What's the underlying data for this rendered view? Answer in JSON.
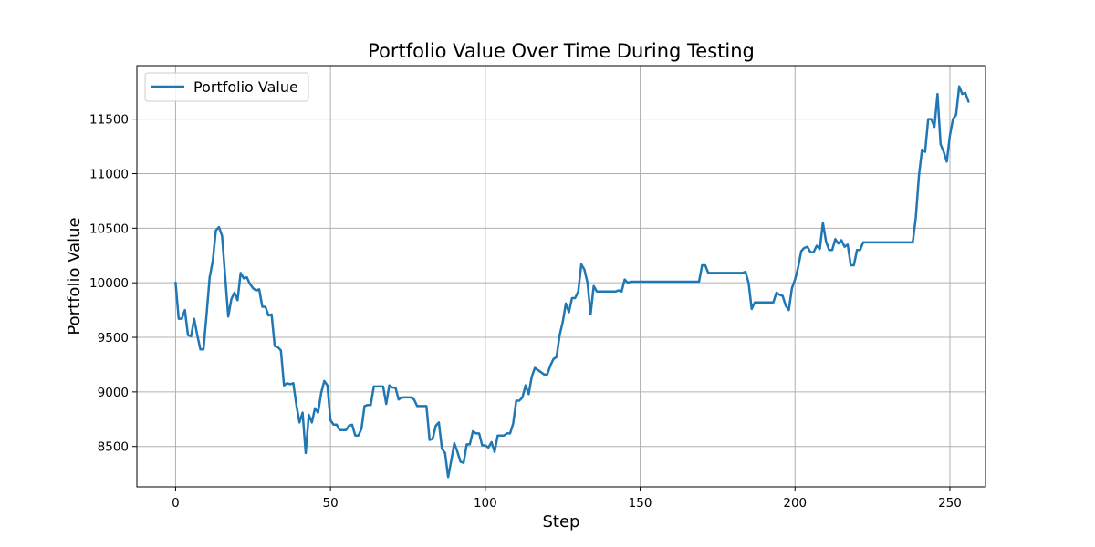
{
  "chart_data": {
    "type": "line",
    "title": "Portfolio Value Over Time During Testing",
    "xlabel": "Step",
    "ylabel": "Portfolio Value",
    "xlim": [
      -12.5,
      261.5
    ],
    "ylim": [
      8130,
      11990
    ],
    "xticks": [
      0,
      50,
      100,
      150,
      200,
      250
    ],
    "yticks": [
      8500,
      9000,
      9500,
      10000,
      10500,
      11000,
      11500
    ],
    "grid": true,
    "legend_position": "upper left",
    "series_color": "#1f77b4",
    "series": [
      {
        "name": "Portfolio Value",
        "values": [
          10000,
          9670,
          9670,
          9750,
          9520,
          9510,
          9670,
          9520,
          9390,
          9390,
          9710,
          10050,
          10200,
          10480,
          10510,
          10430,
          10060,
          9690,
          9850,
          9910,
          9840,
          10090,
          10040,
          10050,
          9990,
          9950,
          9930,
          9940,
          9780,
          9780,
          9700,
          9710,
          9420,
          9410,
          9380,
          9060,
          9080,
          9070,
          9080,
          8880,
          8720,
          8810,
          8440,
          8790,
          8720,
          8850,
          8810,
          8990,
          9100,
          9060,
          8740,
          8700,
          8700,
          8650,
          8650,
          8650,
          8690,
          8700,
          8600,
          8600,
          8660,
          8870,
          8880,
          8880,
          9050,
          9050,
          9050,
          9050,
          8890,
          9060,
          9040,
          9040,
          8930,
          8950,
          8950,
          8950,
          8950,
          8930,
          8870,
          8870,
          8870,
          8870,
          8560,
          8570,
          8690,
          8720,
          8480,
          8440,
          8220,
          8370,
          8530,
          8450,
          8360,
          8350,
          8520,
          8520,
          8640,
          8620,
          8620,
          8510,
          8510,
          8490,
          8540,
          8450,
          8600,
          8600,
          8600,
          8620,
          8620,
          8710,
          8920,
          8920,
          8950,
          9060,
          8980,
          9140,
          9220,
          9200,
          9180,
          9160,
          9160,
          9240,
          9300,
          9320,
          9520,
          9640,
          9810,
          9730,
          9860,
          9860,
          9920,
          10170,
          10120,
          10000,
          9710,
          9970,
          9920,
          9920,
          9920,
          9920,
          9920,
          9920,
          9920,
          9930,
          9920,
          10030,
          10000,
          10010,
          10010,
          10010,
          10010,
          10010,
          10010,
          10010,
          10010,
          10010,
          10010,
          10010,
          10010,
          10010,
          10010,
          10010,
          10010,
          10010,
          10010,
          10010,
          10010,
          10010,
          10010,
          10010,
          10160,
          10160,
          10090,
          10090,
          10090,
          10090,
          10090,
          10090,
          10090,
          10090,
          10090,
          10090,
          10090,
          10090,
          10100,
          10000,
          9760,
          9820,
          9820,
          9820,
          9820,
          9820,
          9820,
          9820,
          9910,
          9890,
          9880,
          9790,
          9750,
          9950,
          10030,
          10140,
          10290,
          10320,
          10330,
          10280,
          10280,
          10340,
          10310,
          10550,
          10380,
          10300,
          10300,
          10400,
          10360,
          10390,
          10330,
          10350,
          10160,
          10160,
          10300,
          10300,
          10370,
          10370,
          10370,
          10370,
          10370,
          10370,
          10370,
          10370,
          10370,
          10370,
          10370,
          10370,
          10370,
          10370,
          10370,
          10370,
          10370,
          10600,
          10980,
          11220,
          11200,
          11500,
          11500,
          11430,
          11730,
          11270,
          11200,
          11110,
          11350,
          11500,
          11540,
          11800,
          11730,
          11740,
          11660
        ]
      }
    ]
  }
}
